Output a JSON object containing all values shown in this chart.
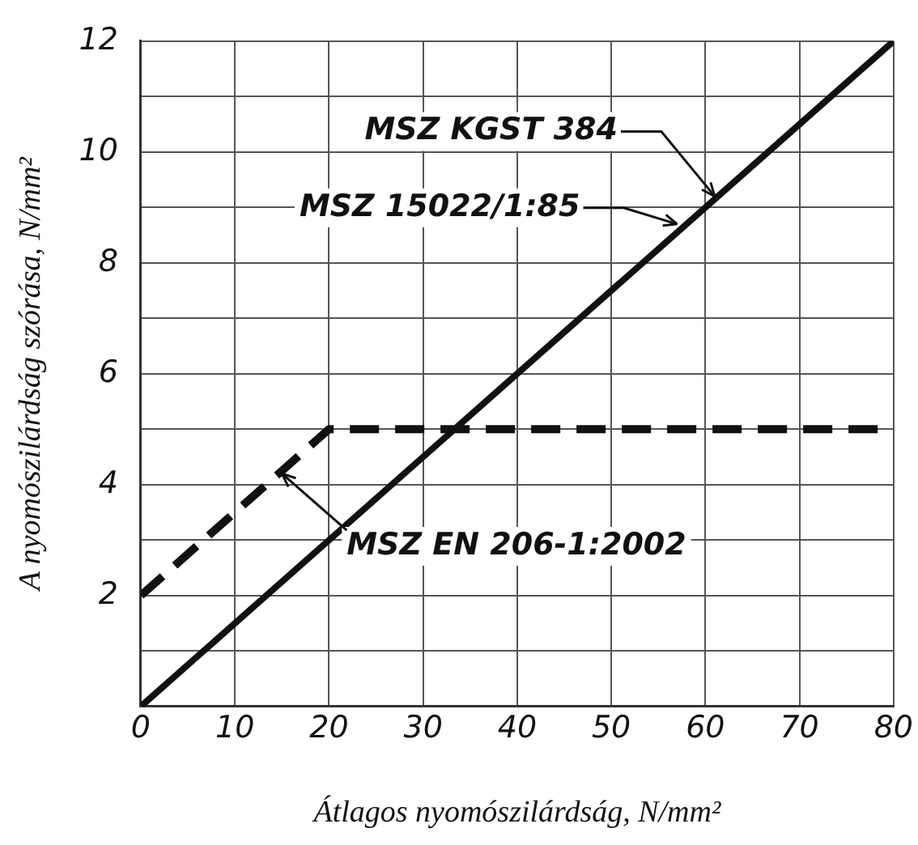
{
  "chart_data": {
    "type": "line",
    "xlabel": "Átlagos nyomószilárdság, N/mm²",
    "ylabel": "A nyomószilárdság szórása, N/mm²",
    "xlim": [
      0,
      80
    ],
    "xticks": [
      0,
      10,
      20,
      30,
      40,
      50,
      60,
      70,
      80
    ],
    "ylim": [
      0,
      12
    ],
    "yticks": [
      {
        "value": 0,
        "label": null
      },
      {
        "value": 1,
        "label": null
      },
      2,
      {
        "value": 3,
        "label": null
      },
      4,
      {
        "value": 5,
        "label": null
      },
      6,
      {
        "value": 7,
        "label": null
      },
      8,
      {
        "value": 9,
        "label": null
      },
      10,
      {
        "value": 11,
        "label": null
      },
      12
    ],
    "grid": true,
    "marker": "none",
    "series": [
      {
        "color": "#111111",
        "x": [
          0,
          80
        ],
        "values": [
          0,
          12
        ],
        "line_style": "solid"
      },
      {
        "color": "#111111",
        "x": [
          0,
          20,
          80
        ],
        "values": [
          2,
          5,
          5
        ],
        "line_style": "dashed"
      }
    ],
    "annotations": [
      {
        "text": "MSZ KGST 384",
        "x": 61,
        "y": 9.2
      },
      {
        "text": "MSZ 15022/1:85",
        "x": 57,
        "y": 8.7
      },
      {
        "text": "MSZ EN 206-1:2002",
        "x": 15,
        "y": 4.2
      }
    ]
  }
}
